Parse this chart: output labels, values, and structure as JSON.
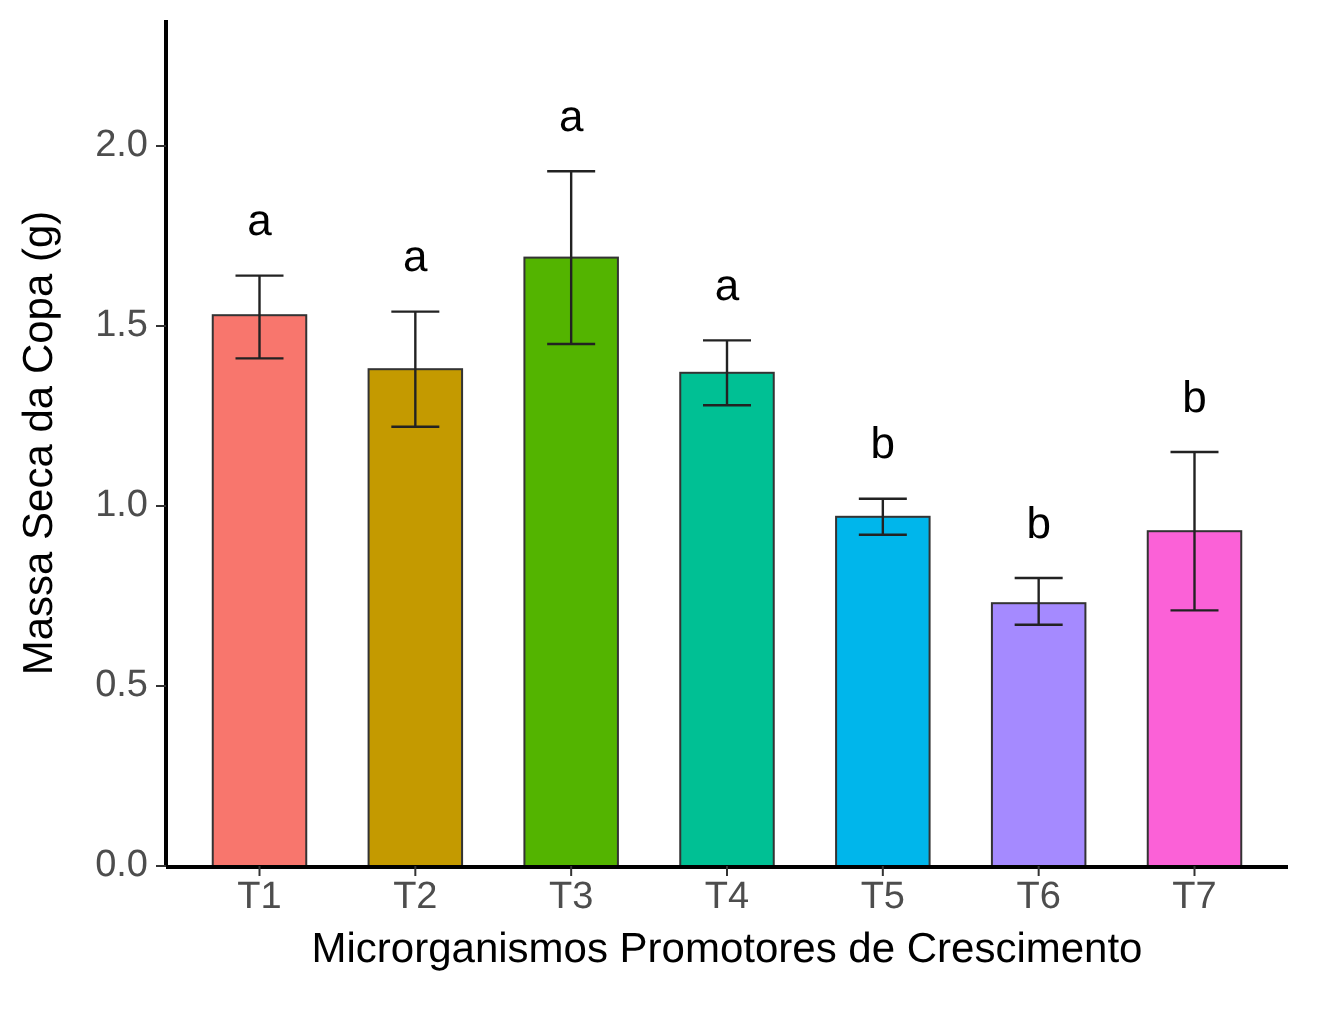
{
  "chart_data": {
    "type": "bar",
    "xlabel": "Microrganismos Promotores de Crescimento",
    "ylabel": "Massa Seca da Copa (g)",
    "categories": [
      "T1",
      "T2",
      "T3",
      "T4",
      "T5",
      "T6",
      "T7"
    ],
    "values": [
      1.53,
      1.38,
      1.69,
      1.37,
      0.97,
      0.73,
      0.93
    ],
    "colors": [
      "#f8766d",
      "#c49a00",
      "#53b400",
      "#00c094",
      "#00b6eb",
      "#a58aff",
      "#fb61d7"
    ],
    "errors": [
      [
        1.41,
        1.64
      ],
      [
        1.22,
        1.54
      ],
      [
        1.45,
        1.93
      ],
      [
        1.28,
        1.46
      ],
      [
        0.92,
        1.02
      ],
      [
        0.67,
        0.8
      ],
      [
        0.71,
        1.15
      ]
    ],
    "annotations": [
      "a",
      "a",
      "a",
      "a",
      "b",
      "b",
      "b"
    ],
    "ylim": [
      0,
      2.35
    ],
    "yticks": [
      {
        "value": 0,
        "label": "0.0"
      },
      {
        "value": 0.5,
        "label": "0.5"
      },
      {
        "value": 1,
        "label": "1.0"
      },
      {
        "value": 1.5,
        "label": "1.5"
      },
      {
        "value": 2,
        "label": "2.0"
      }
    ],
    "grid": false
  }
}
